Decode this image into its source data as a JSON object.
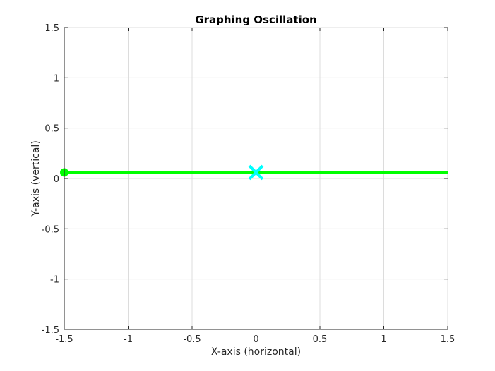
{
  "chart_data": {
    "type": "line",
    "title": "Graphing Oscillation",
    "xlabel": "X-axis (horizontal)",
    "ylabel": "Y-axis (vertical)",
    "xlim": [
      -1.5,
      1.5
    ],
    "ylim": [
      -1.5,
      1.5
    ],
    "xticks": [
      -1.5,
      -1,
      -0.5,
      0,
      0.5,
      1,
      1.5
    ],
    "yticks": [
      -1.5,
      -1,
      -0.5,
      0,
      0.5,
      1,
      1.5
    ],
    "xtick_labels": [
      "-1.5",
      "-1",
      "-0.5",
      "0",
      "0.5",
      "1",
      "1.5"
    ],
    "ytick_labels": [
      "-1.5",
      "-1",
      "-0.5",
      "0",
      "0.5",
      "1",
      "1.5"
    ],
    "grid": true,
    "series": [
      {
        "kind": "line",
        "color": "#00ff00",
        "x": [
          -1.5,
          1.5
        ],
        "y": [
          0.06,
          0.06
        ]
      },
      {
        "kind": "marker-circle",
        "color": "#00ff00",
        "x": [
          -1.5
        ],
        "y": [
          0.06
        ]
      },
      {
        "kind": "marker-x",
        "color": "#00ffff",
        "x": [
          0
        ],
        "y": [
          0.06
        ]
      }
    ]
  }
}
